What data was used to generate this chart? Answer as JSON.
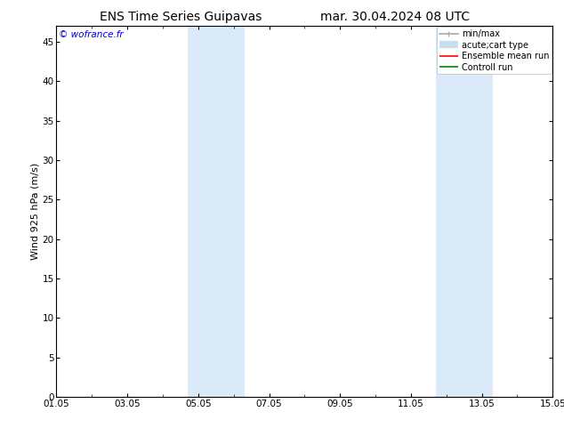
{
  "title_left": "ENS Time Series Guipavas",
  "title_right": "mar. 30.04.2024 08 UTC",
  "ylabel": "Wind 925 hPa (m/s)",
  "watermark": "© wofrance.fr",
  "ylim": [
    0,
    47
  ],
  "yticks": [
    0,
    5,
    10,
    15,
    20,
    25,
    30,
    35,
    40,
    45
  ],
  "xtick_labels": [
    "01.05",
    "03.05",
    "05.05",
    "07.05",
    "09.05",
    "11.05",
    "13.05",
    "15.05"
  ],
  "xtick_positions": [
    0,
    2,
    4,
    6,
    8,
    10,
    12,
    14
  ],
  "x_min": 0,
  "x_max": 14,
  "bg_color": "#ffffff",
  "plot_bg_color": "#ffffff",
  "shaded_bands": [
    {
      "x_start": 3.7,
      "x_end": 5.3,
      "color": "#daeaf8"
    },
    {
      "x_start": 10.7,
      "x_end": 12.3,
      "color": "#daeaf8"
    }
  ],
  "legend_items": [
    {
      "label": "min/max",
      "color": "#aaaaaa",
      "lw": 1.2,
      "style": "minmax"
    },
    {
      "label": "acute;cart type",
      "color": "#c8dff0",
      "lw": 6,
      "style": "solid"
    },
    {
      "label": "Ensemble mean run",
      "color": "#ff0000",
      "lw": 1.2,
      "style": "solid"
    },
    {
      "label": "Controll run",
      "color": "#008000",
      "lw": 1.2,
      "style": "solid"
    }
  ],
  "title_fontsize": 10,
  "tick_fontsize": 7.5,
  "ylabel_fontsize": 8,
  "watermark_color": "#0000cc",
  "watermark_fontsize": 7.5,
  "legend_fontsize": 7,
  "spine_color": "#000000"
}
